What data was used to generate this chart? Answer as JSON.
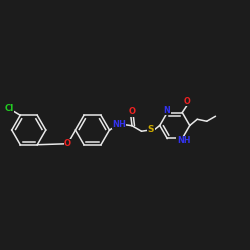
{
  "background_color": "#1c1c1c",
  "bond_color": "#e8e8e8",
  "atom_colors": {
    "Cl": "#22cc22",
    "O": "#ee2222",
    "N": "#3333ee",
    "S": "#ccaa00",
    "C": "#e8e8e8"
  },
  "figsize": [
    2.5,
    2.5
  ],
  "dpi": 100,
  "lw": 1.1,
  "r_hex": 0.068,
  "r_pyr": 0.06
}
